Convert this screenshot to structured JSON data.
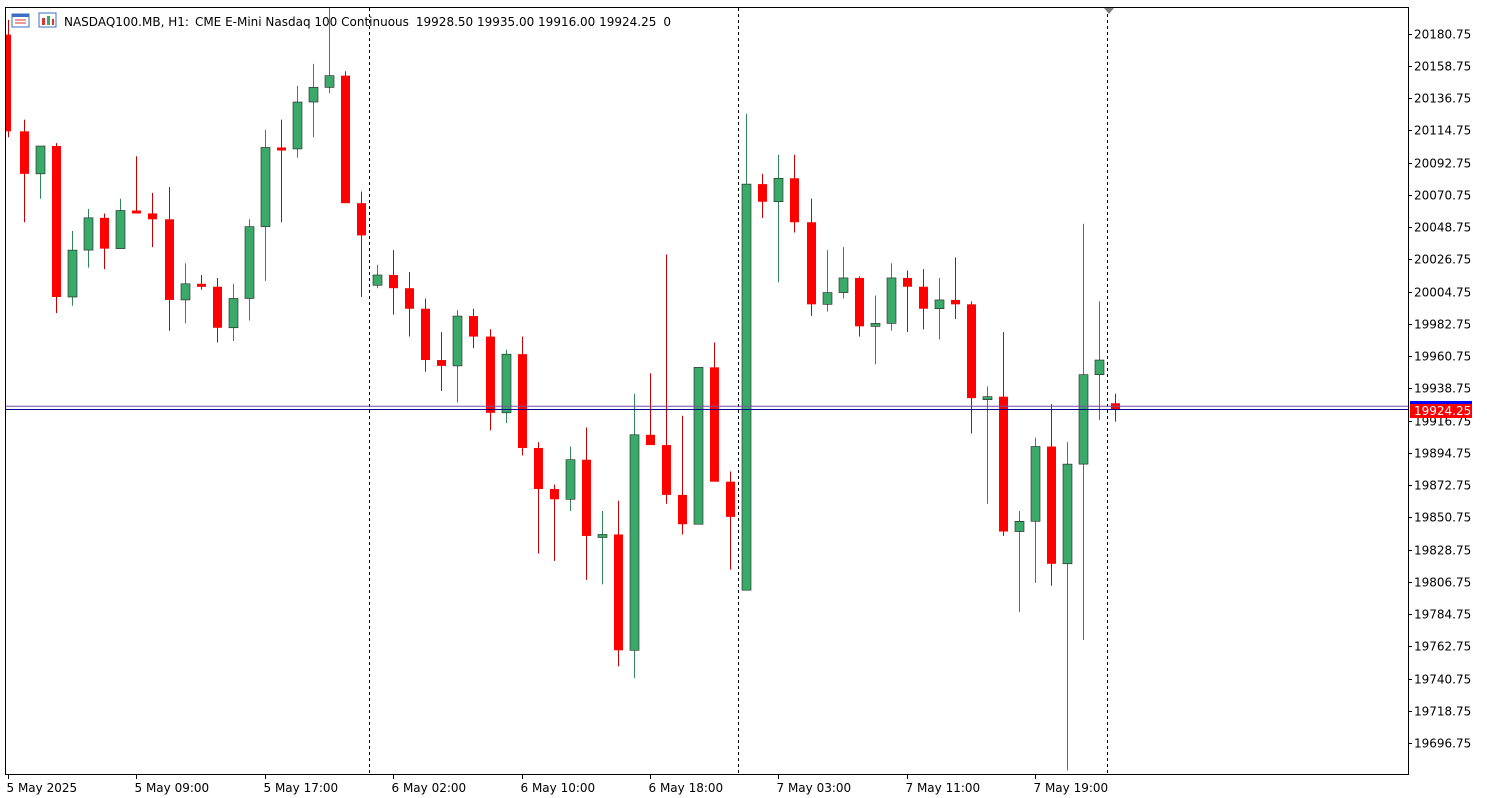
{
  "header": {
    "symbol": "NASDAQ100.MB",
    "timeframe": "H1:",
    "description": "CME E-Mini Nasdaq 100 Continuous",
    "ohlc": "19928.50 19935.00 19916.00 19924.25",
    "volume": "0"
  },
  "icons": {
    "menu": "chart-menu-icon",
    "window": "chart-window-icon"
  },
  "colors": {
    "bull": "#3aaa6a",
    "bear": "#ff0000",
    "bid_line": "#00008b",
    "ask_line": "#7b4da8",
    "price_label": "#ff0000",
    "grid_separator": "#000000"
  },
  "chart_data": {
    "type": "candlestick",
    "timeframe": "H1",
    "ylim": [
      19674,
      20202
    ],
    "y_ticks": [
      20180.75,
      20158.75,
      20136.75,
      20114.75,
      20092.75,
      20070.75,
      20048.75,
      20026.75,
      20004.75,
      19982.75,
      19960.75,
      19938.75,
      19916.75,
      19894.75,
      19872.75,
      19850.75,
      19828.75,
      19806.75,
      19784.75,
      19762.75,
      19740.75,
      19718.75,
      19696.75
    ],
    "y_tick_labels": [
      "20180.75",
      "20158.75",
      "20136.75",
      "20114.75",
      "20092.75",
      "20070.75",
      "20048.75",
      "20026.75",
      "20004.75",
      "19982.75",
      "19960.75",
      "19938.75",
      "19916.75",
      "19894.75",
      "19872.75",
      "19850.75",
      "19828.75",
      "19806.75",
      "19784.75",
      "19762.75",
      "19740.75",
      "19718.75",
      "19696.75"
    ],
    "x_labels": [
      {
        "text": "5 May 2025",
        "index": 0
      },
      {
        "text": "5 May 09:00",
        "index": 8
      },
      {
        "text": "5 May 17:00",
        "index": 16
      },
      {
        "text": "6 May 02:00",
        "index": 24
      },
      {
        "text": "6 May 10:00",
        "index": 32
      },
      {
        "text": "6 May 18:00",
        "index": 40
      },
      {
        "text": "7 May 03:00",
        "index": 48
      },
      {
        "text": "7 May 11:00",
        "index": 56
      },
      {
        "text": "7 May 19:00",
        "index": 64
      }
    ],
    "day_separators": [
      22.5,
      45.5,
      68.5
    ],
    "current_price": 19924.25,
    "current_price_label": "19924.25",
    "ask_price": 19926.5,
    "candles": [
      {
        "o": 20180,
        "h": 20190,
        "l": 20110,
        "c": 20114
      },
      {
        "o": 20114,
        "h": 20122,
        "l": 20052,
        "c": 20085
      },
      {
        "o": 20085,
        "h": 20101,
        "l": 20068,
        "c": 20104
      },
      {
        "o": 20104,
        "h": 20106,
        "l": 19990,
        "c": 20001
      },
      {
        "o": 20001,
        "h": 20046,
        "l": 19995,
        "c": 20033
      },
      {
        "o": 20033,
        "h": 20061,
        "l": 20021,
        "c": 20055
      },
      {
        "o": 20055,
        "h": 20058,
        "l": 20020,
        "c": 20034
      },
      {
        "o": 20034,
        "h": 20068,
        "l": 20034,
        "c": 20060
      },
      {
        "o": 20060,
        "h": 20097,
        "l": 20059,
        "c": 20058
      },
      {
        "o": 20058,
        "h": 20072,
        "l": 20035,
        "c": 20054
      },
      {
        "o": 20054,
        "h": 20076,
        "l": 19978,
        "c": 19999
      },
      {
        "o": 19999,
        "h": 20024,
        "l": 19983,
        "c": 20010
      },
      {
        "o": 20010,
        "h": 20016,
        "l": 20006,
        "c": 20008
      },
      {
        "o": 20008,
        "h": 20014,
        "l": 19970,
        "c": 19980
      },
      {
        "o": 19980,
        "h": 20010,
        "l": 19971,
        "c": 20000
      },
      {
        "o": 20000,
        "h": 20054,
        "l": 19985,
        "c": 20049
      },
      {
        "o": 20049,
        "h": 20115,
        "l": 20012,
        "c": 20103
      },
      {
        "o": 20103,
        "h": 20122,
        "l": 20052,
        "c": 20102
      },
      {
        "o": 20102,
        "h": 20145,
        "l": 20096,
        "c": 20134
      },
      {
        "o": 20134,
        "h": 20160,
        "l": 20110,
        "c": 20144
      },
      {
        "o": 20144,
        "h": 20202,
        "l": 20140,
        "c": 20152
      },
      {
        "o": 20152,
        "h": 20155,
        "l": 20065,
        "c": 20065
      },
      {
        "o": 20065,
        "h": 20073,
        "l": 20001,
        "c": 20043
      },
      {
        "o": 20009,
        "h": 20023,
        "l": 20007,
        "c": 20016
      },
      {
        "o": 20016,
        "h": 20033,
        "l": 19989,
        "c": 20007
      },
      {
        "o": 20007,
        "h": 20018,
        "l": 19974,
        "c": 19993
      },
      {
        "o": 19993,
        "h": 20000,
        "l": 19950,
        "c": 19958
      },
      {
        "o": 19958,
        "h": 19977,
        "l": 19937,
        "c": 19954
      },
      {
        "o": 19954,
        "h": 19992,
        "l": 19929,
        "c": 19988
      },
      {
        "o": 19988,
        "h": 19993,
        "l": 19966,
        "c": 19974
      },
      {
        "o": 19974,
        "h": 19979,
        "l": 19910,
        "c": 19922
      },
      {
        "o": 19922,
        "h": 19965,
        "l": 19915,
        "c": 19962
      },
      {
        "o": 19962,
        "h": 19974,
        "l": 19893,
        "c": 19898
      },
      {
        "o": 19898,
        "h": 19902,
        "l": 19826,
        "c": 19870
      },
      {
        "o": 19870,
        "h": 19873,
        "l": 19821,
        "c": 19863
      },
      {
        "o": 19863,
        "h": 19899,
        "l": 19855,
        "c": 19890
      },
      {
        "o": 19890,
        "h": 19912,
        "l": 19808,
        "c": 19838
      },
      {
        "o": 19838,
        "h": 19855,
        "l": 19805,
        "c": 19839
      },
      {
        "o": 19839,
        "h": 19862,
        "l": 19749,
        "c": 19760
      },
      {
        "o": 19760,
        "h": 19935,
        "l": 19741,
        "c": 19907
      },
      {
        "o": 19907,
        "h": 19949,
        "l": 19902,
        "c": 19900
      },
      {
        "o": 19900,
        "h": 20030,
        "l": 19860,
        "c": 19866
      },
      {
        "o": 19866,
        "h": 19920,
        "l": 19839,
        "c": 19846
      },
      {
        "o": 19846,
        "h": 19953,
        "l": 19846,
        "c": 19953
      },
      {
        "o": 19953,
        "h": 19970,
        "l": 19876,
        "c": 19875
      },
      {
        "o": 19875,
        "h": 19882,
        "l": 19815,
        "c": 19851
      },
      {
        "o": 19801,
        "h": 20126,
        "l": 19801,
        "c": 20078
      },
      {
        "o": 20078,
        "h": 20085,
        "l": 20055,
        "c": 20066
      },
      {
        "o": 20066,
        "h": 20098,
        "l": 20011,
        "c": 20082
      },
      {
        "o": 20082,
        "h": 20098,
        "l": 20045,
        "c": 20052
      },
      {
        "o": 20052,
        "h": 20068,
        "l": 19988,
        "c": 19996
      },
      {
        "o": 19996,
        "h": 20033,
        "l": 19991,
        "c": 20004
      },
      {
        "o": 20004,
        "h": 20035,
        "l": 20000,
        "c": 20014
      },
      {
        "o": 20014,
        "h": 20015,
        "l": 19974,
        "c": 19981
      },
      {
        "o": 19981,
        "h": 20002,
        "l": 19955,
        "c": 19983
      },
      {
        "o": 19983,
        "h": 20024,
        "l": 19978,
        "c": 20014
      },
      {
        "o": 20014,
        "h": 20019,
        "l": 19977,
        "c": 20008
      },
      {
        "o": 20008,
        "h": 20020,
        "l": 19979,
        "c": 19993
      },
      {
        "o": 19993,
        "h": 20014,
        "l": 19972,
        "c": 19999
      },
      {
        "o": 19999,
        "h": 20028,
        "l": 19986,
        "c": 19996
      },
      {
        "o": 19996,
        "h": 19998,
        "l": 19908,
        "c": 19932
      },
      {
        "o": 19932,
        "h": 19940,
        "l": 19860,
        "c": 19933
      },
      {
        "o": 19933,
        "h": 19977,
        "l": 19838,
        "c": 19841
      },
      {
        "o": 19841,
        "h": 19855,
        "l": 19786,
        "c": 19848
      },
      {
        "o": 19848,
        "h": 19905,
        "l": 19806,
        "c": 19899
      },
      {
        "o": 19899,
        "h": 19928,
        "l": 19804,
        "c": 19819
      },
      {
        "o": 19819,
        "h": 19902,
        "l": 19678,
        "c": 19887
      },
      {
        "o": 19887,
        "h": 20051,
        "l": 19767,
        "c": 19948
      },
      {
        "o": 19948,
        "h": 19998,
        "l": 19917,
        "c": 19958
      },
      {
        "o": 19928.5,
        "h": 19935,
        "l": 19916,
        "c": 19924.25
      }
    ]
  }
}
